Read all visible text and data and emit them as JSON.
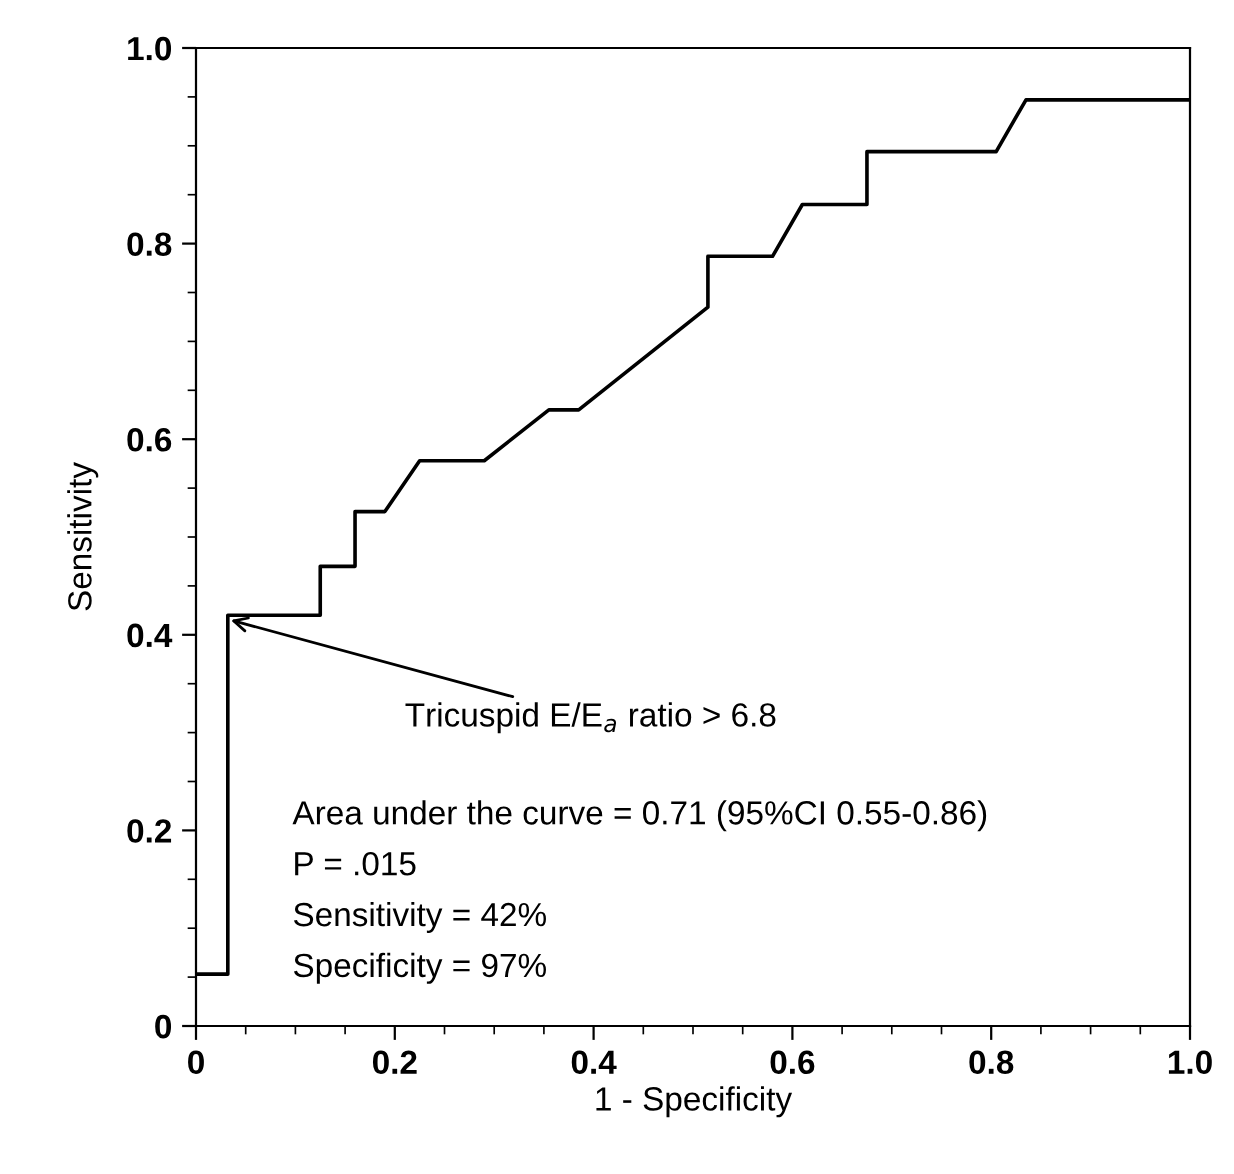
{
  "chart_data": {
    "type": "step",
    "xlabel": "1 - Specificity",
    "ylabel": "Sensitivity",
    "series": [
      {
        "color": "#000000",
        "x": [
          0,
          0.032,
          0.032,
          0.125,
          0.125,
          0.16,
          0.16,
          0.19,
          0.225,
          0.29,
          0.355,
          0.385,
          0.515,
          0.515,
          0.58,
          0.61,
          0.675,
          0.675,
          0.805,
          0.835,
          1.0
        ],
        "values": [
          0.053,
          0.053,
          0.42,
          0.42,
          0.47,
          0.47,
          0.526,
          0.526,
          0.578,
          0.578,
          0.63,
          0.63,
          0.735,
          0.787,
          0.787,
          0.84,
          0.84,
          0.894,
          0.894,
          0.947,
          0.947
        ]
      }
    ],
    "xlim": [
      0,
      1.0
    ],
    "ylim": [
      0,
      1.0
    ],
    "xticks": [
      0,
      0.2,
      0.4,
      0.6,
      0.8,
      {
        "value": 1.0,
        "label": "1.0"
      }
    ],
    "yticks": [
      0,
      0.2,
      0.4,
      0.6,
      0.8,
      {
        "value": 1.0,
        "label": "1.0"
      }
    ],
    "grid": false,
    "legend": false,
    "marker": "none",
    "line_style": "solid",
    "annotations": [
      {
        "text": "Tricuspid E/E$_{a}$ ratio > 6.8",
        "x": 0.035,
        "y": 0.415
      },
      "Area under the curve = 0.71 (95%CI 0.55-0.86)",
      "P = .015",
      "Sensitivity = 42%",
      "Specificity = 97%"
    ]
  }
}
